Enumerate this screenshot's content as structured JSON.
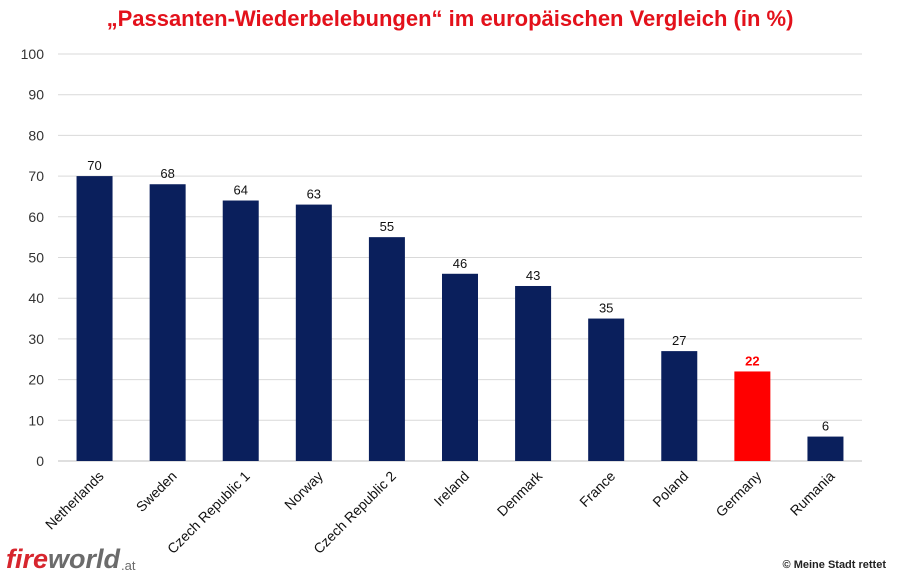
{
  "chart_data": {
    "type": "bar",
    "title": "„Passanten-Wiederbelebungen“ im europäischen Vergleich (in %)",
    "categories": [
      "Netherlands",
      "Sweden",
      "Czech Republic 1",
      "Norway",
      "Czech Republic 2",
      "Ireland",
      "Denmark",
      "France",
      "Poland",
      "Germany",
      "Rumania"
    ],
    "values": [
      70,
      68,
      64,
      63,
      55,
      46,
      43,
      35,
      27,
      22,
      6
    ],
    "data_labels": [
      "70",
      "68",
      "64",
      "63",
      "55",
      "46",
      "43",
      "35",
      "27",
      "22",
      "6"
    ],
    "ylim": [
      0,
      100
    ],
    "yticks": [
      "0",
      "10",
      "20",
      "30",
      "40",
      "50",
      "60",
      "70",
      "80",
      "90",
      "100"
    ],
    "grid": true,
    "legend": "none",
    "highlight_category": "Germany"
  },
  "colors": {
    "title": "#e3111b",
    "bar": "#0a1f5c",
    "highlight_bar": "#ff0000",
    "highlight_label": "#ff0000",
    "grid": "#d9d9d9",
    "axis_text": "#333333"
  },
  "branding": {
    "logo_fire": "fire",
    "logo_world": "world",
    "logo_tld": ".at",
    "copyright": "© Meine Stadt rettet"
  }
}
